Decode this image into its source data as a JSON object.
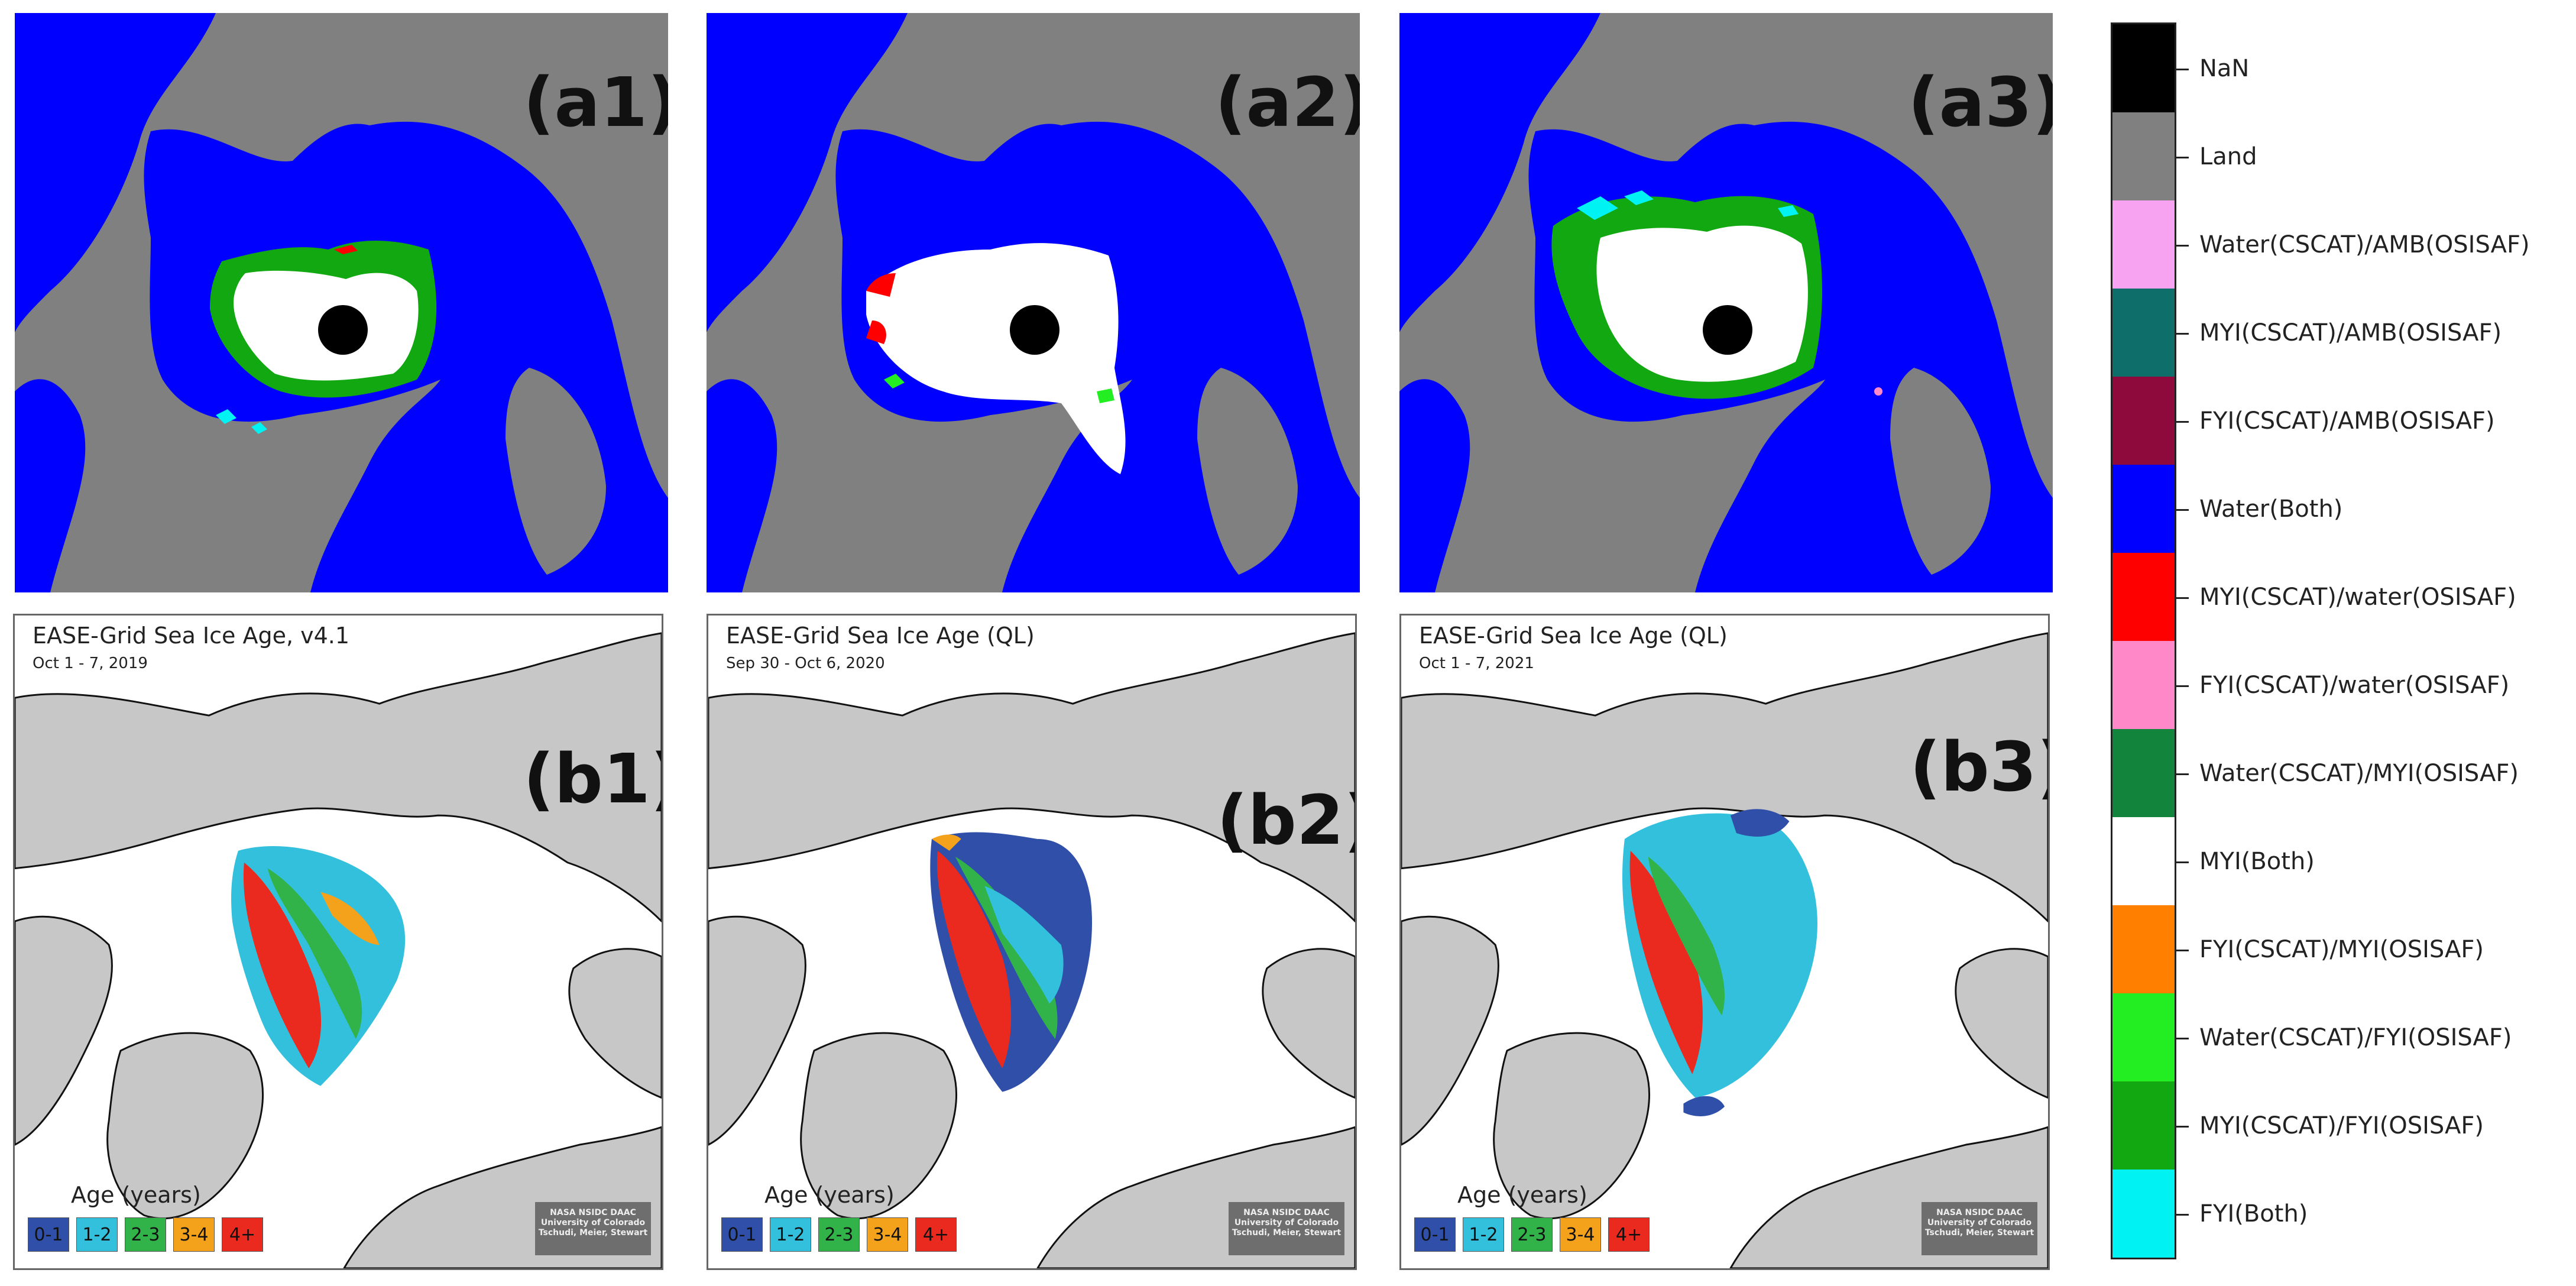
{
  "top_panels": [
    {
      "label": "(a1)"
    },
    {
      "label": "(a2)"
    },
    {
      "label": "(a3)"
    }
  ],
  "bottom_panels": [
    {
      "label": "(b1)",
      "title": "EASE-Grid Sea Ice Age, v4.1",
      "date": "Oct 1 - 7, 2019"
    },
    {
      "label": "(b2)",
      "title": "EASE-Grid Sea Ice Age (QL)",
      "date": "Sep 30 - Oct 6, 2020"
    },
    {
      "label": "(b3)",
      "title": "EASE-Grid Sea Ice Age (QL)",
      "date": "Oct 1 - 7, 2021"
    }
  ],
  "age_legend": {
    "title": "Age (years)",
    "classes": [
      {
        "label": "0-1",
        "color": "#2f4fa8"
      },
      {
        "label": "1-2",
        "color": "#33c0dd"
      },
      {
        "label": "2-3",
        "color": "#32b34a"
      },
      {
        "label": "3-4",
        "color": "#f4a21b"
      },
      {
        "label": "4+",
        "color": "#ea2a1e"
      }
    ]
  },
  "credit": [
    "NASA NSIDC DAAC",
    "University of Colorado",
    "Tschudi, Meier, Stewart"
  ],
  "classification_legend": [
    {
      "label": "NaN",
      "color": "#000000"
    },
    {
      "label": "Land",
      "color": "#808080"
    },
    {
      "label": "Water(CSCAT)/AMB(OSISAF)",
      "color": "#f7a3f2"
    },
    {
      "label": "MYI(CSCAT)/AMB(OSISAF)",
      "color": "#0e6e6a"
    },
    {
      "label": "FYI(CSCAT)/AMB(OSISAF)",
      "color": "#8f0a3c"
    },
    {
      "label": "Water(Both)",
      "color": "#0000ff"
    },
    {
      "label": "MYI(CSCAT)/water(OSISAF)",
      "color": "#ff0000"
    },
    {
      "label": "FYI(CSCAT)/water(OSISAF)",
      "color": "#fe88c8"
    },
    {
      "label": "Water(CSCAT)/MYI(OSISAF)",
      "color": "#12843c"
    },
    {
      "label": "MYI(Both)",
      "color": "#ffffff"
    },
    {
      "label": "FYI(CSCAT)/MYI(OSISAF)",
      "color": "#ff8000"
    },
    {
      "label": "Water(CSCAT)/FYI(OSISAF)",
      "color": "#22ee22"
    },
    {
      "label": "MYI(CSCAT)/FYI(OSISAF)",
      "color": "#11a811"
    },
    {
      "label": "FYI(Both)",
      "color": "#00f2f2"
    }
  ]
}
